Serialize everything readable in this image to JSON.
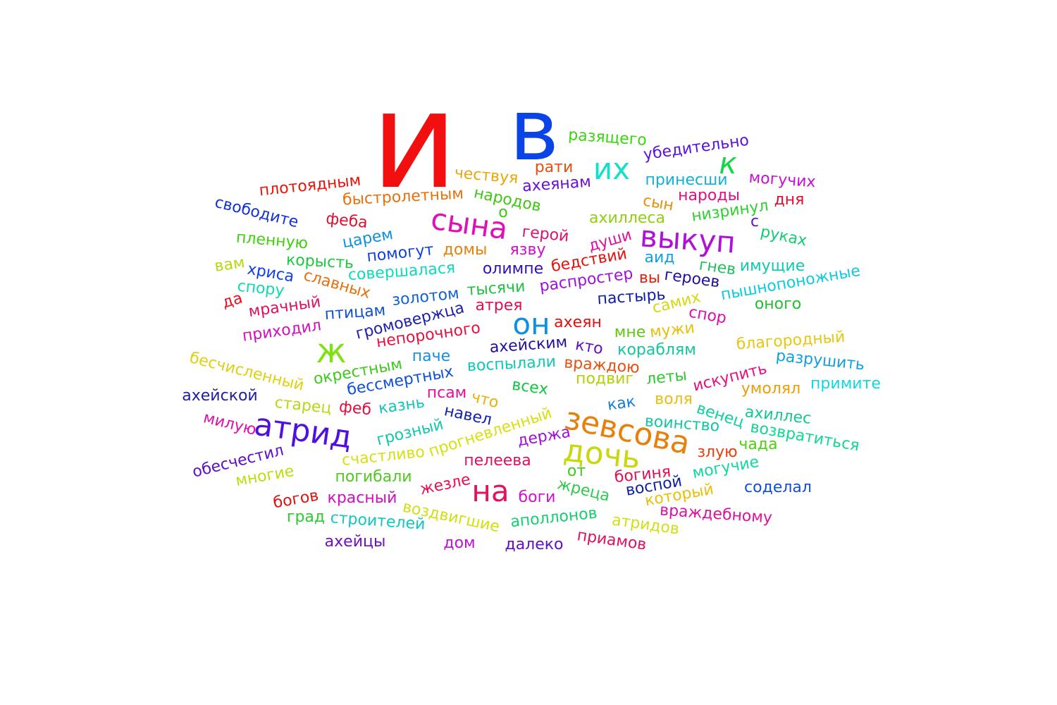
{
  "words": [
    {
      "text": "и",
      "color": "#f20f0f"
    },
    {
      "text": "в",
      "color": "#0b44e6"
    },
    {
      "text": "разящего",
      "color": "#3ad60f"
    },
    {
      "text": "убедительно",
      "color": "#5b12e0"
    },
    {
      "text": "их",
      "color": "#14e0c8"
    },
    {
      "text": "к",
      "color": "#14d64a"
    },
    {
      "text": "рати",
      "color": "#e8500c"
    },
    {
      "text": "чествуя",
      "color": "#e8a80c"
    },
    {
      "text": "плотоядным",
      "color": "#e8140c"
    },
    {
      "text": "ахеянам",
      "color": "#6a10d8"
    },
    {
      "text": "принесши",
      "color": "#10b0d8"
    },
    {
      "text": "могучих",
      "color": "#c810d8"
    },
    {
      "text": "народов",
      "color": "#3ec810"
    },
    {
      "text": "быстролетным",
      "color": "#e8700c"
    },
    {
      "text": "народы",
      "color": "#e01080"
    },
    {
      "text": "свободите",
      "color": "#1030d8"
    },
    {
      "text": "сын",
      "color": "#e8900c"
    },
    {
      "text": "дня",
      "color": "#e01030"
    },
    {
      "text": "сына",
      "color": "#e010b8"
    },
    {
      "text": "о",
      "color": "#40c810"
    },
    {
      "text": "низринул",
      "color": "#30d030"
    },
    {
      "text": "феба",
      "color": "#e01030"
    },
    {
      "text": "ахиллеса",
      "color": "#90d010"
    },
    {
      "text": "с",
      "color": "#6010d8"
    },
    {
      "text": "герой",
      "color": "#e01070"
    },
    {
      "text": "выкуп",
      "color": "#b010d8"
    },
    {
      "text": "пленную",
      "color": "#40d010"
    },
    {
      "text": "царем",
      "color": "#1090d8"
    },
    {
      "text": "руках",
      "color": "#10d070"
    },
    {
      "text": "души",
      "color": "#e010a0"
    },
    {
      "text": "язву",
      "color": "#d010c8"
    },
    {
      "text": "помогут",
      "color": "#1040d8"
    },
    {
      "text": "домы",
      "color": "#e8800c"
    },
    {
      "text": "бедствий",
      "color": "#e8100c"
    },
    {
      "text": "корысть",
      "color": "#20c840"
    },
    {
      "text": "аид",
      "color": "#10a0e8"
    },
    {
      "text": "вам",
      "color": "#b8d810"
    },
    {
      "text": "олимпе",
      "color": "#3010b8"
    },
    {
      "text": "хриса",
      "color": "#1040e8"
    },
    {
      "text": "совершалася",
      "color": "#10d8c0"
    },
    {
      "text": "гнев",
      "color": "#20c060"
    },
    {
      "text": "имущие",
      "color": "#10c8b0"
    },
    {
      "text": "вы",
      "color": "#e82010"
    },
    {
      "text": "героев",
      "color": "#2010a0"
    },
    {
      "text": "распростер",
      "color": "#a010e0"
    },
    {
      "text": "славных",
      "color": "#e8700c"
    },
    {
      "text": "пышнопоножные",
      "color": "#10c8e0"
    },
    {
      "text": "спору",
      "color": "#10d8b0"
    },
    {
      "text": "тысячи",
      "color": "#20c040"
    },
    {
      "text": "пастырь",
      "color": "#1020a0"
    },
    {
      "text": "золотом",
      "color": "#1060d8"
    },
    {
      "text": "да",
      "color": "#e81020"
    },
    {
      "text": "мрачный",
      "color": "#e01060"
    },
    {
      "text": "самих",
      "color": "#d8d810"
    },
    {
      "text": "оного",
      "color": "#20c030"
    },
    {
      "text": "птицам",
      "color": "#1050d8"
    },
    {
      "text": "атрея",
      "color": "#e01050"
    },
    {
      "text": "громовержца",
      "color": "#2020b0"
    },
    {
      "text": "спор",
      "color": "#e010b0"
    },
    {
      "text": "он",
      "color": "#1090e0"
    },
    {
      "text": "ахеян",
      "color": "#e01010"
    },
    {
      "text": "приходил",
      "color": "#d010c0"
    },
    {
      "text": "непорочного",
      "color": "#e81040"
    },
    {
      "text": "мне",
      "color": "#60c810"
    },
    {
      "text": "мужи",
      "color": "#e8c00c"
    },
    {
      "text": "ж",
      "color": "#80e010"
    },
    {
      "text": "благородный",
      "color": "#e8c80c"
    },
    {
      "text": "ахейским",
      "color": "#2010a0"
    },
    {
      "text": "кто",
      "color": "#6010c8"
    },
    {
      "text": "кораблям",
      "color": "#10c8a0"
    },
    {
      "text": "паче",
      "color": "#1090e0"
    },
    {
      "text": "бесчисленный",
      "color": "#e0d010"
    },
    {
      "text": "окрестным",
      "color": "#40c820"
    },
    {
      "text": "воспылали",
      "color": "#10c8b8"
    },
    {
      "text": "враждою",
      "color": "#e85010"
    },
    {
      "text": "разрушить",
      "color": "#10a0e0"
    },
    {
      "text": "подвиг",
      "color": "#b0d010"
    },
    {
      "text": "леты",
      "color": "#30c830"
    },
    {
      "text": "искупить",
      "color": "#e81080"
    },
    {
      "text": "бессмертных",
      "color": "#1050d8"
    },
    {
      "text": "примите",
      "color": "#10d8e0"
    },
    {
      "text": "всех",
      "color": "#10c840"
    },
    {
      "text": "умолял",
      "color": "#e8a00c"
    },
    {
      "text": "ахейской",
      "color": "#2020a0"
    },
    {
      "text": "псам",
      "color": "#e010a0"
    },
    {
      "text": "что",
      "color": "#e8b00c"
    },
    {
      "text": "как",
      "color": "#1080e0"
    },
    {
      "text": "воля",
      "color": "#e8c00c"
    },
    {
      "text": "старец",
      "color": "#b8d810"
    },
    {
      "text": "казнь",
      "color": "#10c8b8"
    },
    {
      "text": "феб",
      "color": "#e01040"
    },
    {
      "text": "навел",
      "color": "#1020b0"
    },
    {
      "text": "венец",
      "color": "#10d0a0"
    },
    {
      "text": "ахиллес",
      "color": "#10c890"
    },
    {
      "text": "атрид",
      "color": "#5010e0"
    },
    {
      "text": "зевсова",
      "color": "#e8800c"
    },
    {
      "text": "милую",
      "color": "#e010b0"
    },
    {
      "text": "грозный",
      "color": "#10c8b0"
    },
    {
      "text": "держа",
      "color": "#a010d8"
    },
    {
      "text": "воинство",
      "color": "#10c8a0"
    },
    {
      "text": "возвратиться",
      "color": "#10d890"
    },
    {
      "text": "прогневленный",
      "color": "#d8e010"
    },
    {
      "text": "обесчестил",
      "color": "#6010c8"
    },
    {
      "text": "дочь",
      "color": "#c8d810"
    },
    {
      "text": "злую",
      "color": "#e84010"
    },
    {
      "text": "чада",
      "color": "#50d010"
    },
    {
      "text": "счастливо",
      "color": "#d8e010"
    },
    {
      "text": "пелеева",
      "color": "#e01060"
    },
    {
      "text": "могучие",
      "color": "#10d8a0"
    },
    {
      "text": "многие",
      "color": "#b8e010"
    },
    {
      "text": "от",
      "color": "#40c820"
    },
    {
      "text": "богиня",
      "color": "#e01050"
    },
    {
      "text": "погибали",
      "color": "#50c820"
    },
    {
      "text": "на",
      "color": "#e81060"
    },
    {
      "text": "воспой",
      "color": "#1020a0"
    },
    {
      "text": "соделал",
      "color": "#1050d8"
    },
    {
      "text": "жезле",
      "color": "#e81050"
    },
    {
      "text": "жреца",
      "color": "#30c850"
    },
    {
      "text": "который",
      "color": "#e8c00c"
    },
    {
      "text": "богов",
      "color": "#e01010"
    },
    {
      "text": "красный",
      "color": "#d010c0"
    },
    {
      "text": "боги",
      "color": "#d010d0"
    },
    {
      "text": "воздвигшие",
      "color": "#d0e010"
    },
    {
      "text": "аполлонов",
      "color": "#10d070"
    },
    {
      "text": "враждебному",
      "color": "#e010a0"
    },
    {
      "text": "град",
      "color": "#30c830"
    },
    {
      "text": "строителей",
      "color": "#10c8c0"
    },
    {
      "text": "атридов",
      "color": "#d0e010"
    },
    {
      "text": "ахейцы",
      "color": "#7010c0"
    },
    {
      "text": "дом",
      "color": "#c010d8"
    },
    {
      "text": "далеко",
      "color": "#6010c8"
    },
    {
      "text": "приамов",
      "color": "#e01060"
    }
  ]
}
